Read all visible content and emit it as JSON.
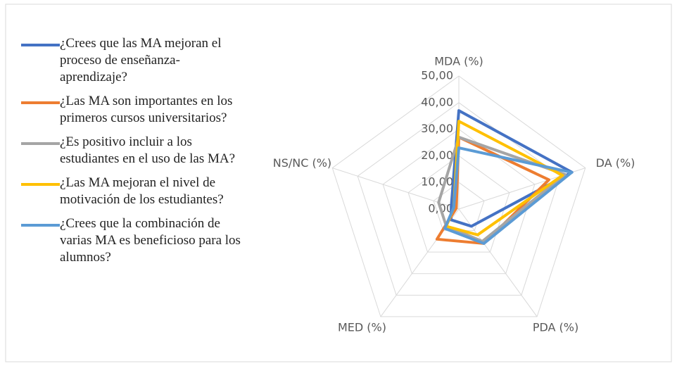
{
  "chart_data": {
    "type": "radar",
    "categories": [
      "MDA (%)",
      "DA (%)",
      "PDA (%)",
      "MED (%)",
      "NS/NC (%)"
    ],
    "series": [
      {
        "name": "¿Crees que las MA mejoran el proceso de enseñanza-aprendizaje?",
        "color": "#4472c4",
        "values": [
          37,
          44.7,
          8,
          5,
          3
        ]
      },
      {
        "name": "¿Las MA son importantes en los primeros cursos universitarios?",
        "color": "#ed7d31",
        "values": [
          27,
          35.6,
          16,
          14,
          1
        ]
      },
      {
        "name": "¿Es positivo incluir a los estudiantes en el uso de las MA?",
        "color": "#a5a5a5",
        "values": [
          27,
          42,
          15,
          8,
          8
        ]
      },
      {
        "name": "¿Las MA mejoran el nivel de motivación de los estudiantes?",
        "color": "#ffc000",
        "values": [
          33,
          41,
          12,
          8,
          2
        ]
      },
      {
        "name": "¿Crees que la combinación de varias MA es beneficioso para los alumnos?",
        "color": "#5b9bd5",
        "values": [
          23,
          44.6,
          16,
          9,
          2
        ]
      }
    ],
    "ylim": [
      0,
      50
    ],
    "yticks": [
      {
        "value": 0,
        "label": "0,00"
      },
      {
        "value": 10,
        "label": "10,00"
      },
      {
        "value": 20,
        "label": "20,00"
      },
      {
        "value": 30,
        "label": "30,00"
      },
      {
        "value": 40,
        "label": "40,00"
      },
      {
        "value": 50,
        "label": "50,00"
      }
    ],
    "grid": true
  }
}
